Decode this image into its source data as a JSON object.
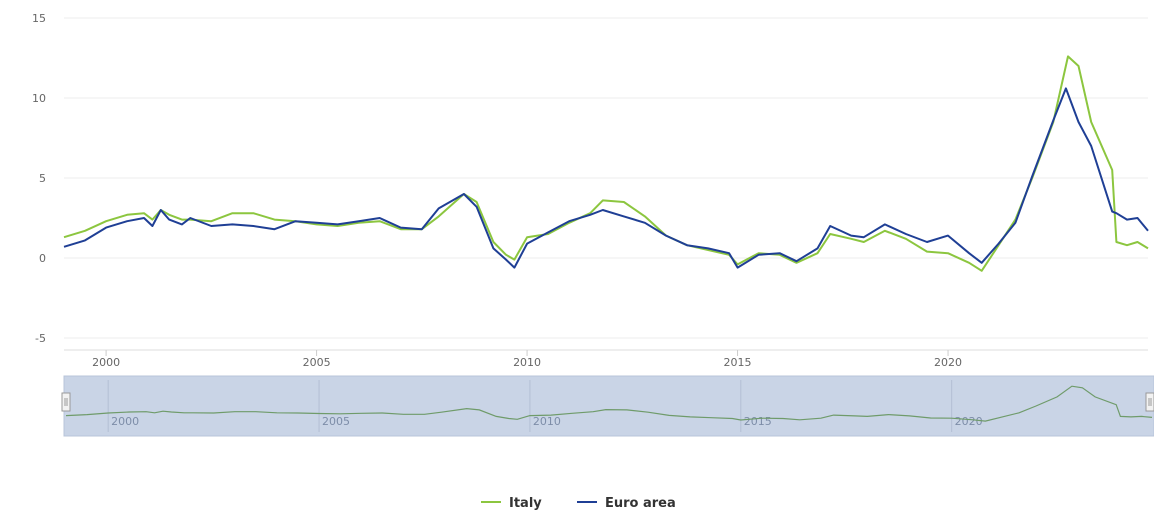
{
  "chart_data": {
    "type": "line",
    "title": "",
    "xlabel": "",
    "ylabel": "",
    "xlim": [
      1999.0,
      2024.75
    ],
    "ylim": [
      -5,
      15
    ],
    "y_ticks": [
      "-5",
      "0",
      "5",
      "10",
      "15"
    ],
    "x_ticks": [
      "2000",
      "2005",
      "2010",
      "2015",
      "2020"
    ],
    "navigator_ticks": [
      "2000",
      "2005",
      "2010",
      "2015",
      "2020"
    ],
    "grid": true,
    "legend": "bottom-center",
    "series": [
      {
        "name": "Italy",
        "color": "#8cc63f",
        "points": [
          [
            1999.0,
            1.3
          ],
          [
            1999.5,
            1.7
          ],
          [
            2000.0,
            2.3
          ],
          [
            2000.5,
            2.7
          ],
          [
            2000.9,
            2.8
          ],
          [
            2001.1,
            2.4
          ],
          [
            2001.3,
            3.0
          ],
          [
            2001.5,
            2.7
          ],
          [
            2001.8,
            2.4
          ],
          [
            2002.0,
            2.4
          ],
          [
            2002.5,
            2.3
          ],
          [
            2003.0,
            2.8
          ],
          [
            2003.5,
            2.8
          ],
          [
            2004.0,
            2.4
          ],
          [
            2004.5,
            2.3
          ],
          [
            2005.0,
            2.1
          ],
          [
            2005.5,
            2.0
          ],
          [
            2006.0,
            2.2
          ],
          [
            2006.5,
            2.3
          ],
          [
            2007.0,
            1.8
          ],
          [
            2007.5,
            1.8
          ],
          [
            2007.9,
            2.6
          ],
          [
            2008.5,
            4.0
          ],
          [
            2008.8,
            3.5
          ],
          [
            2009.2,
            1.0
          ],
          [
            2009.5,
            0.2
          ],
          [
            2009.7,
            -0.1
          ],
          [
            2010.0,
            1.3
          ],
          [
            2010.5,
            1.5
          ],
          [
            2011.0,
            2.2
          ],
          [
            2011.5,
            2.8
          ],
          [
            2011.8,
            3.6
          ],
          [
            2012.3,
            3.5
          ],
          [
            2012.8,
            2.6
          ],
          [
            2013.3,
            1.4
          ],
          [
            2013.8,
            0.8
          ],
          [
            2014.3,
            0.5
          ],
          [
            2014.8,
            0.2
          ],
          [
            2015.0,
            -0.4
          ],
          [
            2015.5,
            0.3
          ],
          [
            2016.0,
            0.2
          ],
          [
            2016.4,
            -0.3
          ],
          [
            2016.9,
            0.3
          ],
          [
            2017.2,
            1.5
          ],
          [
            2017.7,
            1.2
          ],
          [
            2018.0,
            1.0
          ],
          [
            2018.5,
            1.7
          ],
          [
            2019.0,
            1.2
          ],
          [
            2019.5,
            0.4
          ],
          [
            2020.0,
            0.3
          ],
          [
            2020.5,
            -0.3
          ],
          [
            2020.8,
            -0.8
          ],
          [
            2021.2,
            0.8
          ],
          [
            2021.6,
            2.4
          ],
          [
            2022.0,
            5.0
          ],
          [
            2022.5,
            8.5
          ],
          [
            2022.85,
            12.6
          ],
          [
            2023.1,
            12.0
          ],
          [
            2023.4,
            8.5
          ],
          [
            2023.9,
            5.5
          ],
          [
            2024.0,
            1.0
          ],
          [
            2024.25,
            0.8
          ],
          [
            2024.5,
            1.0
          ],
          [
            2024.75,
            0.6
          ]
        ]
      },
      {
        "name": "Euro area",
        "color": "#1f3f95",
        "points": [
          [
            1999.0,
            0.7
          ],
          [
            1999.5,
            1.1
          ],
          [
            2000.0,
            1.9
          ],
          [
            2000.5,
            2.3
          ],
          [
            2000.9,
            2.5
          ],
          [
            2001.1,
            2.0
          ],
          [
            2001.3,
            3.0
          ],
          [
            2001.5,
            2.4
          ],
          [
            2001.8,
            2.1
          ],
          [
            2002.0,
            2.5
          ],
          [
            2002.5,
            2.0
          ],
          [
            2003.0,
            2.1
          ],
          [
            2003.5,
            2.0
          ],
          [
            2004.0,
            1.8
          ],
          [
            2004.5,
            2.3
          ],
          [
            2005.0,
            2.2
          ],
          [
            2005.5,
            2.1
          ],
          [
            2006.0,
            2.3
          ],
          [
            2006.5,
            2.5
          ],
          [
            2007.0,
            1.9
          ],
          [
            2007.5,
            1.8
          ],
          [
            2007.9,
            3.1
          ],
          [
            2008.5,
            4.0
          ],
          [
            2008.8,
            3.2
          ],
          [
            2009.2,
            0.6
          ],
          [
            2009.5,
            -0.1
          ],
          [
            2009.7,
            -0.6
          ],
          [
            2010.0,
            0.9
          ],
          [
            2010.5,
            1.6
          ],
          [
            2011.0,
            2.3
          ],
          [
            2011.5,
            2.7
          ],
          [
            2011.8,
            3.0
          ],
          [
            2012.3,
            2.6
          ],
          [
            2012.8,
            2.2
          ],
          [
            2013.3,
            1.4
          ],
          [
            2013.8,
            0.8
          ],
          [
            2014.3,
            0.6
          ],
          [
            2014.8,
            0.3
          ],
          [
            2015.0,
            -0.6
          ],
          [
            2015.5,
            0.2
          ],
          [
            2016.0,
            0.3
          ],
          [
            2016.4,
            -0.2
          ],
          [
            2016.9,
            0.6
          ],
          [
            2017.2,
            2.0
          ],
          [
            2017.7,
            1.4
          ],
          [
            2018.0,
            1.3
          ],
          [
            2018.5,
            2.1
          ],
          [
            2019.0,
            1.5
          ],
          [
            2019.5,
            1.0
          ],
          [
            2020.0,
            1.4
          ],
          [
            2020.5,
            0.3
          ],
          [
            2020.8,
            -0.3
          ],
          [
            2021.2,
            0.9
          ],
          [
            2021.6,
            2.2
          ],
          [
            2022.0,
            5.1
          ],
          [
            2022.5,
            8.6
          ],
          [
            2022.8,
            10.6
          ],
          [
            2023.1,
            8.5
          ],
          [
            2023.4,
            7.0
          ],
          [
            2023.9,
            2.9
          ],
          [
            2024.0,
            2.8
          ],
          [
            2024.25,
            2.4
          ],
          [
            2024.5,
            2.5
          ],
          [
            2024.75,
            1.7
          ]
        ]
      }
    ]
  }
}
